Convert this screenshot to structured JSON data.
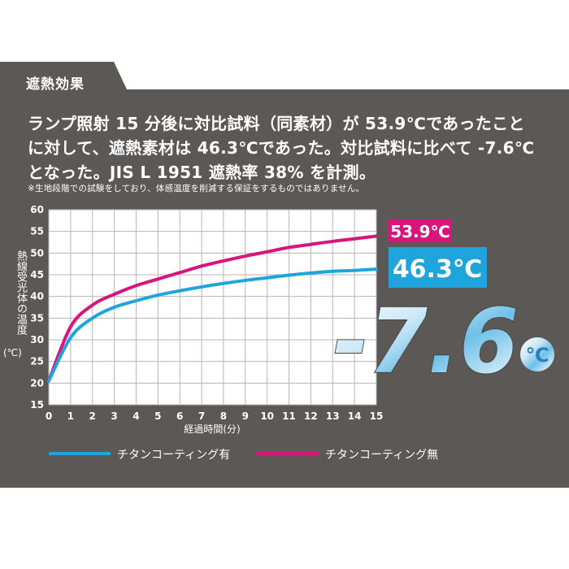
{
  "section_label": "遮熱効果",
  "description_lines": [
    "ランプ照射 15 分後に対比試料（同素材）が 53.9℃であったこと",
    "に対して、遮熱素材は 46.3℃であった。対比試料に比べて -7.6℃",
    "となった。JIS L 1951 遮熱率 38% を計測。"
  ],
  "note": "※生地段階での試験をしており、体感温度を削減する保証をするものではありません。",
  "colors": {
    "panel": "#5c5856",
    "coated": "#1fa4dd",
    "uncoated": "#d9147a",
    "grid": "#b8b5b3"
  },
  "chart_data": {
    "type": "line",
    "xlabel": "経過時間(分)",
    "ylabel": "熱線受光体の温度",
    "ylabel_unit": "(℃)",
    "xlim": [
      0,
      15
    ],
    "ylim": [
      15,
      60
    ],
    "xticks": [
      0,
      1,
      2,
      3,
      4,
      5,
      6,
      7,
      8,
      9,
      10,
      11,
      12,
      13,
      14,
      15
    ],
    "yticks": [
      15,
      20,
      25,
      30,
      35,
      40,
      45,
      50,
      55,
      60
    ],
    "grid": true,
    "legend_position": "bottom",
    "x": [
      0,
      1,
      2,
      3,
      4,
      5,
      6,
      7,
      8,
      9,
      10,
      11,
      12,
      13,
      14,
      15
    ],
    "series": [
      {
        "name": "チタンコーティング有",
        "color": "#1fa4dd",
        "values": [
          20.5,
          30.5,
          35.0,
          37.5,
          39.0,
          40.3,
          41.3,
          42.2,
          43.0,
          43.7,
          44.3,
          44.9,
          45.4,
          45.8,
          46.0,
          46.3
        ]
      },
      {
        "name": "チタンコーティング無",
        "color": "#d9147a",
        "values": [
          20.5,
          33.0,
          38.0,
          40.5,
          42.5,
          44.0,
          45.5,
          47.0,
          48.2,
          49.3,
          50.3,
          51.3,
          52.0,
          52.7,
          53.3,
          53.9
        ]
      }
    ],
    "annotations": {
      "uncoated_final": "53.9℃",
      "coated_final": "46.3℃",
      "difference": "-7.6",
      "difference_unit": "℃"
    }
  }
}
